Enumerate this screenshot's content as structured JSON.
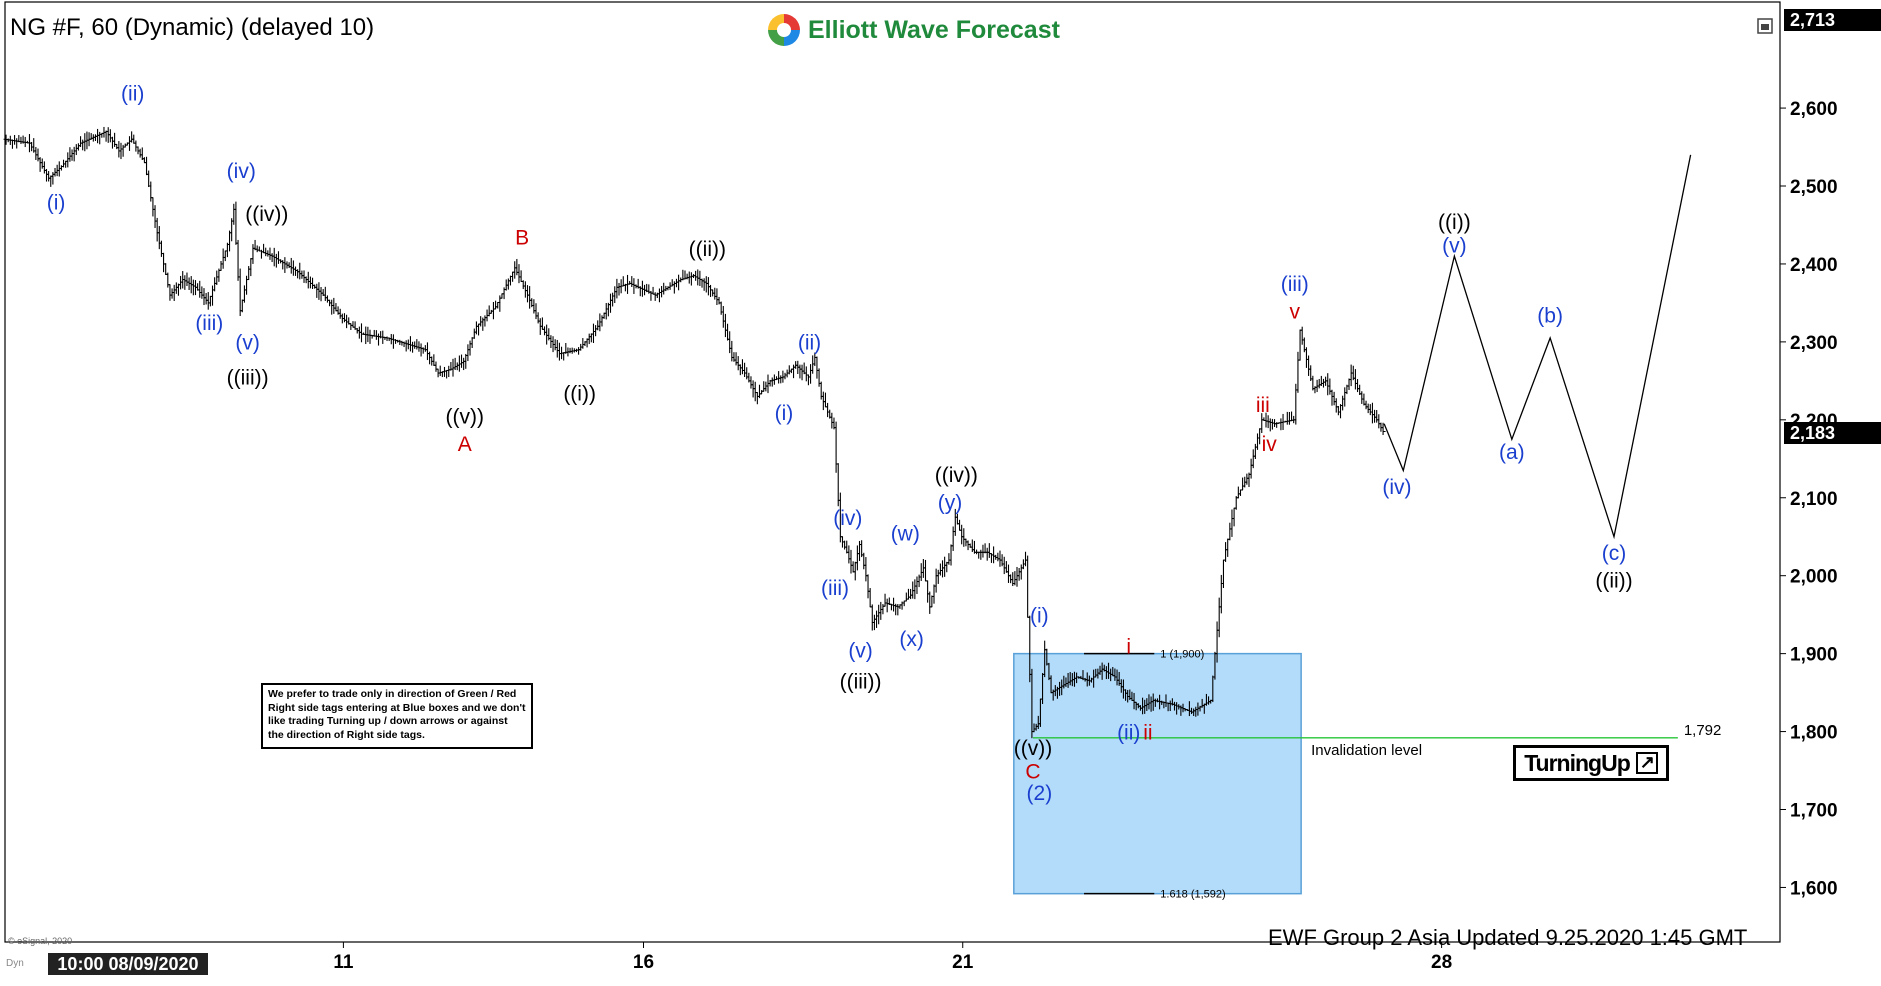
{
  "header": {
    "symbol_line": "NG #F, 60 (Dynamic) (delayed 10)",
    "brand": "Elliott Wave Forecast"
  },
  "note_text": "We prefer to trade only in direction of Green / Red Right side tags entering at Blue boxes and we don't like trading Turning up / down arrows or against the direction of Right side tags.",
  "turning_label": "TurningUp",
  "footer": {
    "updated": "EWF Group 2 Asia Updated 9.25.2020 1:45 GMT",
    "copyright": "© eSignal, 2020",
    "dyn": "Dyn",
    "cursor_date": "10:00 08/09/2020"
  },
  "price_tags": {
    "top": "2,713",
    "current": "2,183"
  },
  "colors": {
    "blue_label": "#1a3fcf",
    "red_label": "#cc0000",
    "black_label": "#000000",
    "box_fill": "#b3dcfa",
    "box_stroke": "#5aa0d8",
    "invalidation": "#27c437",
    "bars": "#000000"
  },
  "chart_data": {
    "type": "ohlc",
    "y_axis": {
      "min": 1530,
      "max": 2713,
      "ticks": [
        1600,
        1700,
        1800,
        1900,
        2000,
        2100,
        2200,
        2300,
        2400,
        2500,
        2600
      ],
      "tick_labels": [
        "1,600",
        "1,700",
        "1,800",
        "1,900",
        "2,000",
        "2,100",
        "2,200",
        "2,300",
        "2,400",
        "2,500",
        "2,600"
      ]
    },
    "x_axis": {
      "start": 0,
      "end": 278,
      "ticks": [
        {
          "x": 53,
          "label": "11"
        },
        {
          "x": 100,
          "label": "16"
        },
        {
          "x": 150,
          "label": "21"
        },
        {
          "x": 225,
          "label": "28"
        }
      ]
    },
    "price_path": [
      [
        0,
        2560
      ],
      [
        4,
        2555
      ],
      [
        7,
        2510
      ],
      [
        9,
        2525
      ],
      [
        12,
        2555
      ],
      [
        16,
        2570
      ],
      [
        18,
        2545
      ],
      [
        20,
        2560
      ],
      [
        22,
        2530
      ],
      [
        24,
        2440
      ],
      [
        26,
        2360
      ],
      [
        28,
        2380
      ],
      [
        30,
        2370
      ],
      [
        32,
        2350
      ],
      [
        35,
        2425
      ],
      [
        36,
        2470
      ],
      [
        37,
        2340
      ],
      [
        39,
        2420
      ],
      [
        42,
        2410
      ],
      [
        46,
        2390
      ],
      [
        50,
        2360
      ],
      [
        53,
        2330
      ],
      [
        56,
        2310
      ],
      [
        60,
        2305
      ],
      [
        66,
        2290
      ],
      [
        68,
        2260
      ],
      [
        70,
        2265
      ],
      [
        72,
        2275
      ],
      [
        74,
        2320
      ],
      [
        77,
        2345
      ],
      [
        80,
        2395
      ],
      [
        82,
        2360
      ],
      [
        84,
        2320
      ],
      [
        87,
        2285
      ],
      [
        90,
        2290
      ],
      [
        93,
        2320
      ],
      [
        96,
        2370
      ],
      [
        98,
        2375
      ],
      [
        102,
        2360
      ],
      [
        106,
        2380
      ],
      [
        108,
        2385
      ],
      [
        110,
        2375
      ],
      [
        112,
        2350
      ],
      [
        114,
        2280
      ],
      [
        116,
        2260
      ],
      [
        118,
        2230
      ],
      [
        120,
        2250
      ],
      [
        122,
        2255
      ],
      [
        124,
        2270
      ],
      [
        126,
        2255
      ],
      [
        127,
        2280
      ],
      [
        128,
        2230
      ],
      [
        130,
        2190
      ],
      [
        131,
        2050
      ],
      [
        132,
        2030
      ],
      [
        133,
        2005
      ],
      [
        134,
        2040
      ],
      [
        135,
        2000
      ],
      [
        136,
        1940
      ],
      [
        138,
        1965
      ],
      [
        140,
        1960
      ],
      [
        142,
        1975
      ],
      [
        144,
        2010
      ],
      [
        145,
        1960
      ],
      [
        146,
        2000
      ],
      [
        148,
        2020
      ],
      [
        149,
        2075
      ],
      [
        150,
        2050
      ],
      [
        152,
        2030
      ],
      [
        154,
        2030
      ],
      [
        156,
        2020
      ],
      [
        158,
        1990
      ],
      [
        160,
        2020
      ],
      [
        161,
        1800
      ],
      [
        162,
        1810
      ],
      [
        163,
        1905
      ],
      [
        164,
        1850
      ],
      [
        166,
        1860
      ],
      [
        168,
        1870
      ],
      [
        170,
        1865
      ],
      [
        172,
        1880
      ],
      [
        174,
        1870
      ],
      [
        176,
        1845
      ],
      [
        178,
        1830
      ],
      [
        180,
        1840
      ],
      [
        183,
        1835
      ],
      [
        186,
        1825
      ],
      [
        189,
        1840
      ],
      [
        191,
        2020
      ],
      [
        193,
        2100
      ],
      [
        195,
        2130
      ],
      [
        197,
        2200
      ],
      [
        199,
        2195
      ],
      [
        202,
        2200
      ],
      [
        203,
        2315
      ],
      [
        205,
        2240
      ],
      [
        207,
        2250
      ],
      [
        209,
        2210
      ],
      [
        211,
        2260
      ],
      [
        213,
        2220
      ],
      [
        215,
        2200
      ],
      [
        216,
        2185
      ]
    ],
    "projection_path": [
      [
        216,
        2195
      ],
      [
        219,
        2135
      ],
      [
        227,
        2410
      ],
      [
        236,
        2175
      ],
      [
        242,
        2305
      ],
      [
        252,
        2050
      ],
      [
        264,
        2540
      ]
    ],
    "blue_box": {
      "x_start": 158,
      "x_end": 203,
      "top": 1900,
      "bottom": 1592
    },
    "fib_levels": [
      {
        "label": "1 (1,900)",
        "value": 1900
      },
      {
        "label": "1.618 (1,592)",
        "value": 1592
      }
    ],
    "invalidation": {
      "label": "Invalidation level",
      "value": 1792,
      "value_label": "1,792"
    },
    "wave_labels": [
      {
        "text": "(i)",
        "x": 8,
        "y": 2470,
        "color": "blue"
      },
      {
        "text": "(ii)",
        "x": 20,
        "y": 2610,
        "color": "blue"
      },
      {
        "text": "(iii)",
        "x": 32,
        "y": 2315,
        "color": "blue"
      },
      {
        "text": "(iv)",
        "x": 37,
        "y": 2510,
        "color": "blue"
      },
      {
        "text": "((iv))",
        "x": 41,
        "y": 2455,
        "color": "black"
      },
      {
        "text": "(v)",
        "x": 38,
        "y": 2290,
        "color": "blue"
      },
      {
        "text": "((iii))",
        "x": 38,
        "y": 2245,
        "color": "black"
      },
      {
        "text": "((v))",
        "x": 72,
        "y": 2195,
        "color": "black"
      },
      {
        "text": "A",
        "x": 72,
        "y": 2160,
        "color": "red"
      },
      {
        "text": "B",
        "x": 81,
        "y": 2425,
        "color": "red"
      },
      {
        "text": "((i))",
        "x": 90,
        "y": 2225,
        "color": "black"
      },
      {
        "text": "((ii))",
        "x": 110,
        "y": 2410,
        "color": "black"
      },
      {
        "text": "(i)",
        "x": 122,
        "y": 2200,
        "color": "blue"
      },
      {
        "text": "(ii)",
        "x": 126,
        "y": 2290,
        "color": "blue"
      },
      {
        "text": "(iv)",
        "x": 132,
        "y": 2065,
        "color": "blue"
      },
      {
        "text": "(iii)",
        "x": 130,
        "y": 1975,
        "color": "blue"
      },
      {
        "text": "(v)",
        "x": 134,
        "y": 1895,
        "color": "blue"
      },
      {
        "text": "((iii))",
        "x": 134,
        "y": 1855,
        "color": "black"
      },
      {
        "text": "(w)",
        "x": 141,
        "y": 2045,
        "color": "blue"
      },
      {
        "text": "(x)",
        "x": 142,
        "y": 1910,
        "color": "blue"
      },
      {
        "text": "(y)",
        "x": 148,
        "y": 2085,
        "color": "blue"
      },
      {
        "text": "((iv))",
        "x": 149,
        "y": 2120,
        "color": "black"
      },
      {
        "text": "(i)",
        "x": 162,
        "y": 1940,
        "color": "blue"
      },
      {
        "text": "i",
        "x": 176,
        "y": 1900,
        "color": "red"
      },
      {
        "text": "(ii)",
        "x": 176,
        "y": 1790,
        "color": "blue"
      },
      {
        "text": "ii",
        "x": 179,
        "y": 1790,
        "color": "red"
      },
      {
        "text": "((v))",
        "x": 161,
        "y": 1770,
        "color": "black"
      },
      {
        "text": "C",
        "x": 161,
        "y": 1740,
        "color": "red"
      },
      {
        "text": "(2)",
        "x": 162,
        "y": 1712,
        "color": "blue"
      },
      {
        "text": "iii",
        "x": 197,
        "y": 2210,
        "color": "red"
      },
      {
        "text": "iv",
        "x": 198,
        "y": 2160,
        "color": "red"
      },
      {
        "text": "(iii)",
        "x": 202,
        "y": 2365,
        "color": "blue"
      },
      {
        "text": "v",
        "x": 202,
        "y": 2330,
        "color": "red"
      },
      {
        "text": "(iv)",
        "x": 218,
        "y": 2105,
        "color": "blue"
      },
      {
        "text": "((i))",
        "x": 227,
        "y": 2445,
        "color": "black"
      },
      {
        "text": "(v)",
        "x": 227,
        "y": 2415,
        "color": "blue"
      },
      {
        "text": "(a)",
        "x": 236,
        "y": 2150,
        "color": "blue"
      },
      {
        "text": "(b)",
        "x": 242,
        "y": 2325,
        "color": "blue"
      },
      {
        "text": "(c)",
        "x": 252,
        "y": 2020,
        "color": "blue"
      },
      {
        "text": "((ii))",
        "x": 252,
        "y": 1985,
        "color": "black"
      }
    ]
  }
}
